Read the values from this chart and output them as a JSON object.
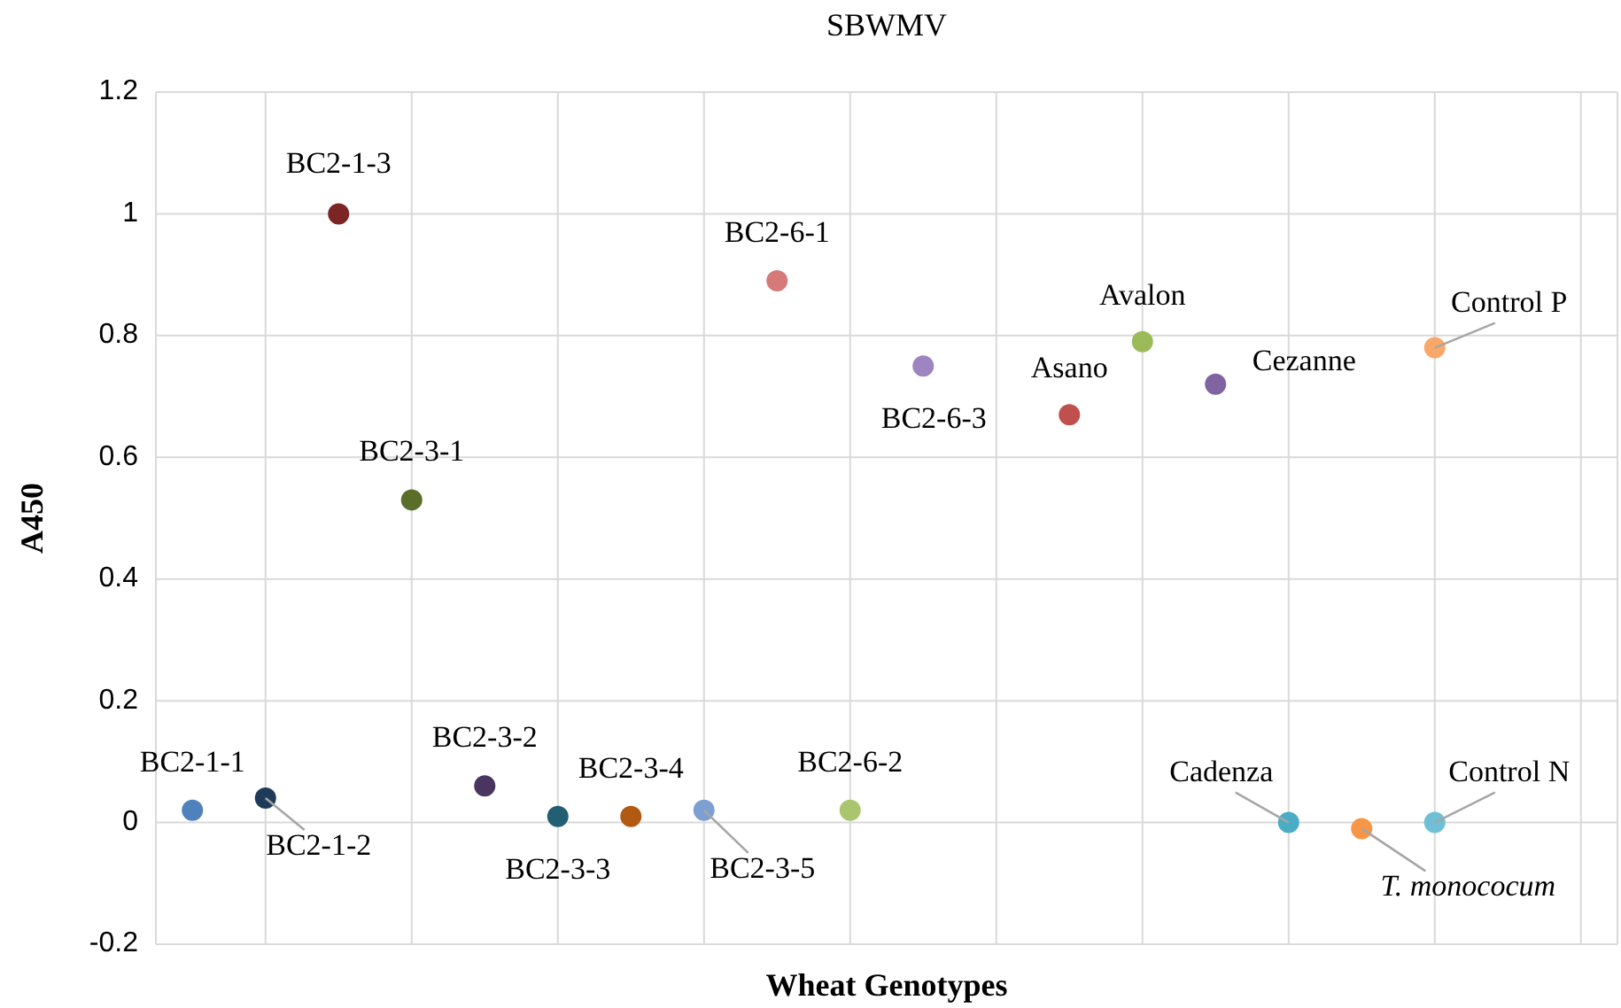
{
  "chart_data": {
    "type": "scatter",
    "title": "SBWMV",
    "xlabel": "Wheat Genotypes",
    "ylabel": "A450",
    "categories": [
      null,
      null,
      null,
      null,
      null,
      null,
      null,
      null,
      null,
      null,
      null,
      null,
      null,
      null,
      null,
      null,
      null,
      null,
      null,
      null
    ],
    "series": [
      {
        "values": [
          0.02,
          0.04,
          1.0,
          0.53,
          0.06,
          0.01,
          0.01,
          0.02,
          0.89,
          0.02,
          0.75,
          null,
          0.67,
          0.79,
          0.72,
          0.0,
          -0.01,
          0.0,
          null,
          null
        ],
        "colors": [
          "#4f81bd",
          "#1f3b5a",
          "#7b2525",
          "#5a6e2a",
          "#4a3560",
          "#235f73",
          "#b35a12",
          "#7d9fd1",
          "#d67979",
          "#a9c66f",
          "#9d85c2",
          null,
          "#c0504d",
          "#9bbb59",
          "#8064a2",
          "#4bacc6",
          "#f79646",
          "#6fbfd6",
          null,
          null
        ]
      },
      {
        "values": [
          null,
          null,
          null,
          null,
          null,
          null,
          null,
          null,
          null,
          null,
          null,
          null,
          null,
          null,
          null,
          null,
          null,
          0.78,
          null,
          null
        ],
        "color": "#f9a86a"
      }
    ],
    "marker": "circle",
    "ylim": [
      -0.2,
      1.2
    ],
    "yticks": [
      {
        "value": -0.2,
        "label": "-0.2"
      },
      {
        "value": 0,
        "label": "0"
      },
      {
        "value": 0.2,
        "label": "0.2"
      },
      {
        "value": 0.4,
        "label": "0.4"
      },
      {
        "value": 0.6,
        "label": "0.6"
      },
      {
        "value": 0.8,
        "label": "0.8"
      },
      {
        "value": 1,
        "label": "1"
      },
      {
        "value": 1.2,
        "label": "1.2"
      }
    ],
    "tick_labels": "y",
    "grid": true,
    "annotations": [
      "BC2-1-1",
      "BC2-1-2",
      "BC2-1-3",
      "BC2-3-1",
      "BC2-3-2",
      "BC2-3-3",
      "BC2-3-4",
      "BC2-3-5",
      "BC2-6-1",
      "BC2-6-2",
      "BC2-6-3",
      "Asano",
      "Avalon",
      "Cezanne",
      "Cadenza",
      "T. monococum",
      "Control N",
      "Control P"
    ]
  }
}
